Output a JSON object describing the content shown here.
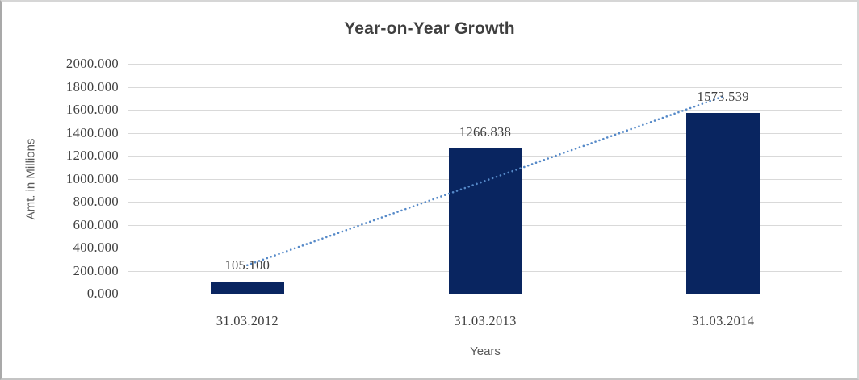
{
  "chart_data": {
    "type": "bar",
    "title": "Year-on-Year Growth",
    "categories": [
      "31.03.2012",
      "31.03.2013",
      "31.03.2014"
    ],
    "values": [
      105.1,
      1266.838,
      1573.539
    ],
    "data_labels": [
      "105.100",
      "1266.838",
      "1573.539"
    ],
    "xlabel": "Years",
    "ylabel": "Amt. in Millions",
    "ylim": [
      0,
      2000
    ],
    "ytick_step": 200,
    "ytick_labels": [
      "0.000",
      "200.000",
      "400.000",
      "600.000",
      "800.000",
      "1000.000",
      "1200.000",
      "1400.000",
      "1600.000",
      "1800.000",
      "2000.000"
    ],
    "grid": true,
    "legend": "none",
    "trendline": {
      "type": "linear",
      "style": "dotted",
      "color": "#5589c8"
    },
    "colors": {
      "bar": "#092560",
      "gridline": "#d9d9d9",
      "title": "#3f3f3f",
      "tick_label": "#3f3f3f",
      "axis_title": "#595959",
      "background": "#ffffff"
    }
  }
}
